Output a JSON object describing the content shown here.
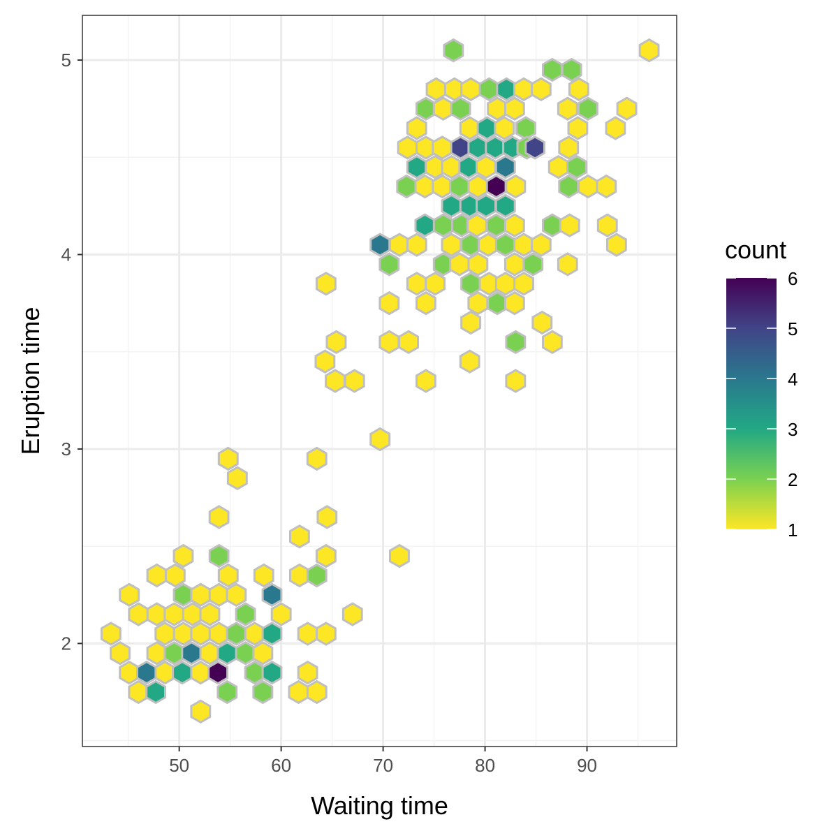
{
  "chart_data": {
    "type": "hexbin",
    "title": "",
    "xlabel": "Waiting time",
    "ylabel": "Eruption time",
    "xlim": [
      40.5,
      98.8
    ],
    "ylim": [
      1.47,
      5.23
    ],
    "xticks": [
      50,
      60,
      70,
      80,
      90
    ],
    "yticks": [
      2,
      3,
      4,
      5
    ],
    "grid": true,
    "legend": {
      "title": "count",
      "position": "right",
      "min": 1,
      "max": 6,
      "ticks": [
        1,
        2,
        3,
        4,
        5,
        6
      ]
    },
    "colors": {
      "cell_border": "#bfbfbf",
      "panel_border": "#333333",
      "grid_major": "#ebebeb",
      "grid_minor": "#f3f3f3",
      "scale": [
        "#fde725",
        "#7ad151",
        "#22a884",
        "#2a788e",
        "#414487",
        "#440154"
      ]
    },
    "points": [
      {
        "x": 76.9,
        "y": 5.05,
        "count": 2
      },
      {
        "x": 96.1,
        "y": 5.05,
        "count": 1
      },
      {
        "x": 86.6,
        "y": 4.95,
        "count": 2
      },
      {
        "x": 88.5,
        "y": 4.95,
        "count": 2
      },
      {
        "x": 75.2,
        "y": 4.85,
        "count": 1
      },
      {
        "x": 77.0,
        "y": 4.85,
        "count": 1
      },
      {
        "x": 78.6,
        "y": 4.85,
        "count": 1
      },
      {
        "x": 80.4,
        "y": 4.85,
        "count": 2
      },
      {
        "x": 82.1,
        "y": 4.85,
        "count": 3
      },
      {
        "x": 83.8,
        "y": 4.85,
        "count": 1
      },
      {
        "x": 85.5,
        "y": 4.85,
        "count": 1
      },
      {
        "x": 89.2,
        "y": 4.85,
        "count": 1
      },
      {
        "x": 74.2,
        "y": 4.75,
        "count": 2
      },
      {
        "x": 75.9,
        "y": 4.75,
        "count": 1
      },
      {
        "x": 77.6,
        "y": 4.75,
        "count": 2
      },
      {
        "x": 81.2,
        "y": 4.75,
        "count": 1
      },
      {
        "x": 82.9,
        "y": 4.75,
        "count": 1
      },
      {
        "x": 88.1,
        "y": 4.75,
        "count": 1
      },
      {
        "x": 90.1,
        "y": 4.75,
        "count": 2
      },
      {
        "x": 93.9,
        "y": 4.75,
        "count": 1
      },
      {
        "x": 73.3,
        "y": 4.65,
        "count": 1
      },
      {
        "x": 78.5,
        "y": 4.65,
        "count": 1
      },
      {
        "x": 80.2,
        "y": 4.65,
        "count": 3
      },
      {
        "x": 81.9,
        "y": 4.65,
        "count": 1
      },
      {
        "x": 84.0,
        "y": 4.65,
        "count": 2
      },
      {
        "x": 89.1,
        "y": 4.65,
        "count": 1
      },
      {
        "x": 92.8,
        "y": 4.65,
        "count": 1
      },
      {
        "x": 72.4,
        "y": 4.55,
        "count": 1
      },
      {
        "x": 74.2,
        "y": 4.55,
        "count": 1
      },
      {
        "x": 75.8,
        "y": 4.55,
        "count": 1
      },
      {
        "x": 77.6,
        "y": 4.55,
        "count": 5
      },
      {
        "x": 79.3,
        "y": 4.55,
        "count": 3
      },
      {
        "x": 81.0,
        "y": 4.55,
        "count": 3
      },
      {
        "x": 82.7,
        "y": 4.55,
        "count": 3
      },
      {
        "x": 84.1,
        "y": 4.55,
        "count": 2
      },
      {
        "x": 84.9,
        "y": 4.55,
        "count": 5
      },
      {
        "x": 88.2,
        "y": 4.55,
        "count": 1
      },
      {
        "x": 73.3,
        "y": 4.45,
        "count": 3
      },
      {
        "x": 75.1,
        "y": 4.45,
        "count": 1
      },
      {
        "x": 76.7,
        "y": 4.45,
        "count": 1
      },
      {
        "x": 78.4,
        "y": 4.45,
        "count": 3
      },
      {
        "x": 80.1,
        "y": 4.45,
        "count": 1
      },
      {
        "x": 82.0,
        "y": 4.45,
        "count": 4
      },
      {
        "x": 87.2,
        "y": 4.45,
        "count": 1
      },
      {
        "x": 89.0,
        "y": 4.45,
        "count": 2
      },
      {
        "x": 72.3,
        "y": 4.35,
        "count": 2
      },
      {
        "x": 74.1,
        "y": 4.35,
        "count": 1
      },
      {
        "x": 75.8,
        "y": 4.35,
        "count": 1
      },
      {
        "x": 77.5,
        "y": 4.35,
        "count": 2
      },
      {
        "x": 79.3,
        "y": 4.35,
        "count": 1
      },
      {
        "x": 81.1,
        "y": 4.35,
        "count": 6
      },
      {
        "x": 83.0,
        "y": 4.35,
        "count": 1
      },
      {
        "x": 88.2,
        "y": 4.35,
        "count": 2
      },
      {
        "x": 90.1,
        "y": 4.35,
        "count": 1
      },
      {
        "x": 91.9,
        "y": 4.35,
        "count": 1
      },
      {
        "x": 76.7,
        "y": 4.25,
        "count": 3
      },
      {
        "x": 78.5,
        "y": 4.25,
        "count": 3
      },
      {
        "x": 80.1,
        "y": 4.25,
        "count": 3
      },
      {
        "x": 82.0,
        "y": 4.25,
        "count": 3
      },
      {
        "x": 74.1,
        "y": 4.15,
        "count": 3
      },
      {
        "x": 75.9,
        "y": 4.15,
        "count": 2
      },
      {
        "x": 77.7,
        "y": 4.15,
        "count": 2
      },
      {
        "x": 79.2,
        "y": 4.15,
        "count": 1
      },
      {
        "x": 81.1,
        "y": 4.15,
        "count": 2
      },
      {
        "x": 82.9,
        "y": 4.15,
        "count": 1
      },
      {
        "x": 86.6,
        "y": 4.15,
        "count": 2
      },
      {
        "x": 88.3,
        "y": 4.15,
        "count": 1
      },
      {
        "x": 92.0,
        "y": 4.15,
        "count": 1
      },
      {
        "x": 69.7,
        "y": 4.05,
        "count": 4
      },
      {
        "x": 71.6,
        "y": 4.05,
        "count": 1
      },
      {
        "x": 73.3,
        "y": 4.05,
        "count": 1
      },
      {
        "x": 76.7,
        "y": 4.05,
        "count": 1
      },
      {
        "x": 78.6,
        "y": 4.05,
        "count": 2
      },
      {
        "x": 80.3,
        "y": 4.05,
        "count": 1
      },
      {
        "x": 82.0,
        "y": 4.05,
        "count": 2
      },
      {
        "x": 83.8,
        "y": 4.05,
        "count": 1
      },
      {
        "x": 85.5,
        "y": 4.05,
        "count": 1
      },
      {
        "x": 92.9,
        "y": 4.05,
        "count": 1
      },
      {
        "x": 70.6,
        "y": 3.95,
        "count": 2
      },
      {
        "x": 75.9,
        "y": 3.95,
        "count": 2
      },
      {
        "x": 77.5,
        "y": 3.95,
        "count": 1
      },
      {
        "x": 79.3,
        "y": 3.95,
        "count": 1
      },
      {
        "x": 82.9,
        "y": 3.95,
        "count": 1
      },
      {
        "x": 84.7,
        "y": 3.95,
        "count": 2
      },
      {
        "x": 88.1,
        "y": 3.95,
        "count": 1
      },
      {
        "x": 64.4,
        "y": 3.85,
        "count": 1
      },
      {
        "x": 73.3,
        "y": 3.85,
        "count": 1
      },
      {
        "x": 75.1,
        "y": 3.85,
        "count": 1
      },
      {
        "x": 78.6,
        "y": 3.85,
        "count": 2
      },
      {
        "x": 80.4,
        "y": 3.85,
        "count": 1
      },
      {
        "x": 82.0,
        "y": 3.85,
        "count": 1
      },
      {
        "x": 83.8,
        "y": 3.85,
        "count": 1
      },
      {
        "x": 70.6,
        "y": 3.75,
        "count": 1
      },
      {
        "x": 74.2,
        "y": 3.75,
        "count": 1
      },
      {
        "x": 79.3,
        "y": 3.75,
        "count": 1
      },
      {
        "x": 81.2,
        "y": 3.75,
        "count": 2
      },
      {
        "x": 82.9,
        "y": 3.75,
        "count": 1
      },
      {
        "x": 78.6,
        "y": 3.65,
        "count": 1
      },
      {
        "x": 85.6,
        "y": 3.65,
        "count": 1
      },
      {
        "x": 65.4,
        "y": 3.55,
        "count": 1
      },
      {
        "x": 70.6,
        "y": 3.55,
        "count": 1
      },
      {
        "x": 72.5,
        "y": 3.55,
        "count": 1
      },
      {
        "x": 83.0,
        "y": 3.55,
        "count": 2
      },
      {
        "x": 86.6,
        "y": 3.55,
        "count": 1
      },
      {
        "x": 64.3,
        "y": 3.45,
        "count": 1
      },
      {
        "x": 78.5,
        "y": 3.45,
        "count": 1
      },
      {
        "x": 65.3,
        "y": 3.35,
        "count": 1
      },
      {
        "x": 67.2,
        "y": 3.35,
        "count": 1
      },
      {
        "x": 74.2,
        "y": 3.35,
        "count": 1
      },
      {
        "x": 83.0,
        "y": 3.35,
        "count": 1
      },
      {
        "x": 69.7,
        "y": 3.05,
        "count": 1
      },
      {
        "x": 54.8,
        "y": 2.95,
        "count": 1
      },
      {
        "x": 63.5,
        "y": 2.95,
        "count": 1
      },
      {
        "x": 55.7,
        "y": 2.85,
        "count": 1
      },
      {
        "x": 53.9,
        "y": 2.65,
        "count": 1
      },
      {
        "x": 64.5,
        "y": 2.65,
        "count": 1
      },
      {
        "x": 61.8,
        "y": 2.55,
        "count": 1
      },
      {
        "x": 50.4,
        "y": 2.45,
        "count": 1
      },
      {
        "x": 53.9,
        "y": 2.45,
        "count": 2
      },
      {
        "x": 64.4,
        "y": 2.45,
        "count": 1
      },
      {
        "x": 71.6,
        "y": 2.45,
        "count": 1
      },
      {
        "x": 47.8,
        "y": 2.35,
        "count": 1
      },
      {
        "x": 49.6,
        "y": 2.35,
        "count": 1
      },
      {
        "x": 54.8,
        "y": 2.35,
        "count": 1
      },
      {
        "x": 58.3,
        "y": 2.35,
        "count": 1
      },
      {
        "x": 61.8,
        "y": 2.35,
        "count": 1
      },
      {
        "x": 63.5,
        "y": 2.35,
        "count": 2
      },
      {
        "x": 45.1,
        "y": 2.25,
        "count": 1
      },
      {
        "x": 50.4,
        "y": 2.25,
        "count": 2
      },
      {
        "x": 52.1,
        "y": 2.25,
        "count": 1
      },
      {
        "x": 53.9,
        "y": 2.25,
        "count": 1
      },
      {
        "x": 55.6,
        "y": 2.25,
        "count": 1
      },
      {
        "x": 59.1,
        "y": 2.25,
        "count": 4
      },
      {
        "x": 46.0,
        "y": 2.15,
        "count": 1
      },
      {
        "x": 47.8,
        "y": 2.15,
        "count": 1
      },
      {
        "x": 49.5,
        "y": 2.15,
        "count": 1
      },
      {
        "x": 51.3,
        "y": 2.15,
        "count": 1
      },
      {
        "x": 53.0,
        "y": 2.15,
        "count": 1
      },
      {
        "x": 56.5,
        "y": 2.15,
        "count": 2
      },
      {
        "x": 60.0,
        "y": 2.15,
        "count": 1
      },
      {
        "x": 67.0,
        "y": 2.15,
        "count": 1
      },
      {
        "x": 43.3,
        "y": 2.05,
        "count": 1
      },
      {
        "x": 48.6,
        "y": 2.05,
        "count": 1
      },
      {
        "x": 50.4,
        "y": 2.05,
        "count": 1
      },
      {
        "x": 52.1,
        "y": 2.05,
        "count": 1
      },
      {
        "x": 53.9,
        "y": 2.05,
        "count": 1
      },
      {
        "x": 55.6,
        "y": 2.05,
        "count": 2
      },
      {
        "x": 57.4,
        "y": 2.05,
        "count": 1
      },
      {
        "x": 59.1,
        "y": 2.05,
        "count": 3
      },
      {
        "x": 62.6,
        "y": 2.05,
        "count": 1
      },
      {
        "x": 64.4,
        "y": 2.05,
        "count": 1
      },
      {
        "x": 44.2,
        "y": 1.95,
        "count": 1
      },
      {
        "x": 47.8,
        "y": 1.95,
        "count": 1
      },
      {
        "x": 49.5,
        "y": 1.95,
        "count": 2
      },
      {
        "x": 51.2,
        "y": 1.95,
        "count": 4
      },
      {
        "x": 53.0,
        "y": 1.95,
        "count": 1
      },
      {
        "x": 54.7,
        "y": 1.95,
        "count": 3
      },
      {
        "x": 56.5,
        "y": 1.95,
        "count": 2
      },
      {
        "x": 58.2,
        "y": 1.95,
        "count": 1
      },
      {
        "x": 45.1,
        "y": 1.85,
        "count": 1
      },
      {
        "x": 46.8,
        "y": 1.85,
        "count": 4
      },
      {
        "x": 48.6,
        "y": 1.85,
        "count": 1
      },
      {
        "x": 50.3,
        "y": 1.85,
        "count": 3
      },
      {
        "x": 52.1,
        "y": 1.85,
        "count": 1
      },
      {
        "x": 53.8,
        "y": 1.85,
        "count": 6
      },
      {
        "x": 57.4,
        "y": 1.85,
        "count": 2
      },
      {
        "x": 59.1,
        "y": 1.85,
        "count": 3
      },
      {
        "x": 62.6,
        "y": 1.85,
        "count": 1
      },
      {
        "x": 46.0,
        "y": 1.75,
        "count": 1
      },
      {
        "x": 47.7,
        "y": 1.75,
        "count": 3
      },
      {
        "x": 54.7,
        "y": 1.75,
        "count": 2
      },
      {
        "x": 58.2,
        "y": 1.75,
        "count": 2
      },
      {
        "x": 61.7,
        "y": 1.75,
        "count": 1
      },
      {
        "x": 63.5,
        "y": 1.75,
        "count": 1
      },
      {
        "x": 52.1,
        "y": 1.65,
        "count": 1
      }
    ]
  }
}
